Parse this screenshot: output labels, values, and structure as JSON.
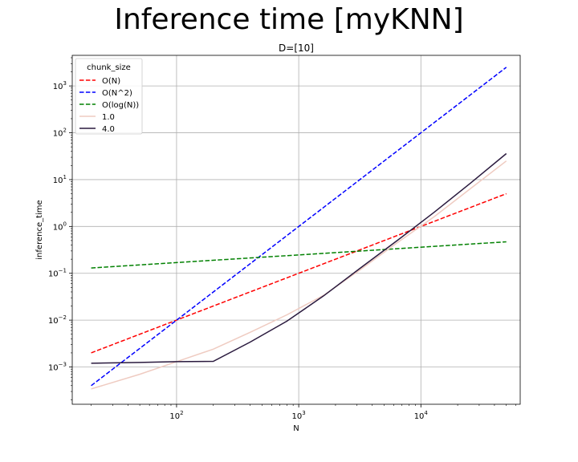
{
  "figure": {
    "suptitle": "Inference time [myKNN]"
  },
  "chart_data": {
    "type": "line",
    "title": "D=[10]",
    "xlabel": "N",
    "ylabel": "inference_time",
    "xscale": "log",
    "yscale": "log",
    "xlim": [
      14,
      65000
    ],
    "ylim": [
      0.00016,
      4500
    ],
    "xticks": [
      {
        "value": 100,
        "base": "10",
        "exp": "2"
      },
      {
        "value": 1000,
        "base": "10",
        "exp": "3"
      },
      {
        "value": 10000,
        "base": "10",
        "exp": "4"
      }
    ],
    "yticks": [
      {
        "value": 0.001,
        "base": "10",
        "exp": "−3"
      },
      {
        "value": 0.01,
        "base": "10",
        "exp": "−2"
      },
      {
        "value": 0.1,
        "base": "10",
        "exp": "−1"
      },
      {
        "value": 1,
        "base": "10",
        "exp": "0"
      },
      {
        "value": 10,
        "base": "10",
        "exp": "1"
      },
      {
        "value": 100,
        "base": "10",
        "exp": "2"
      },
      {
        "value": 1000,
        "base": "10",
        "exp": "3"
      }
    ],
    "grid": true,
    "legend": {
      "title": "chunk_size",
      "placement": "top-left"
    },
    "series": [
      {
        "name": "O(N)",
        "color": "#ff0000",
        "style": "dashed",
        "x": [
          20,
          50000
        ],
        "y": [
          0.002,
          5
        ]
      },
      {
        "name": "O(N^2)",
        "color": "#0000ff",
        "style": "dashed",
        "x": [
          20,
          50000
        ],
        "y": [
          0.0004,
          2500
        ]
      },
      {
        "name": "O(log(N))",
        "color": "#008000",
        "style": "dashed",
        "x": [
          20,
          50000
        ],
        "y": [
          0.13,
          0.47
        ]
      },
      {
        "name": "1.0",
        "color": "#efcbc1",
        "style": "solid",
        "x": [
          20,
          50,
          100,
          200,
          400,
          800,
          1600,
          3200,
          6400,
          12800,
          25600,
          50000
        ],
        "y": [
          0.00034,
          0.0007,
          0.0013,
          0.0024,
          0.0055,
          0.013,
          0.034,
          0.12,
          0.45,
          1.6,
          6.5,
          25
        ]
      },
      {
        "name": "4.0",
        "color": "#2a1a3e",
        "style": "solid",
        "x": [
          20,
          50,
          100,
          200,
          400,
          800,
          1600,
          3200,
          6400,
          12800,
          25600,
          50000
        ],
        "y": [
          0.0012,
          0.00125,
          0.0013,
          0.00132,
          0.0034,
          0.0095,
          0.033,
          0.13,
          0.5,
          2.0,
          8.5,
          36
        ]
      }
    ]
  }
}
